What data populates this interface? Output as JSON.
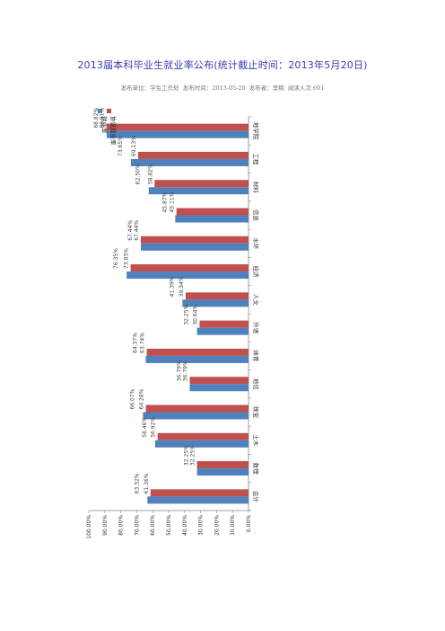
{
  "page": {
    "title": "2013届本科毕业生就业率公布(统计截止时间：2013年5月20日)",
    "meta": {
      "publisher": "发布单位：学生工作处",
      "publish_time": "发布时间：2013-05-20",
      "author": "发布者：李绚",
      "reads": "阅读人次 691"
    }
  },
  "chart_data": {
    "type": "bar",
    "orientation": "rotated-90",
    "categories": [
      "地学院",
      "工程",
      "材料",
      "信息",
      "水环",
      "经济",
      "人文",
      "外语",
      "体育",
      "地信",
      "珠宝",
      "土木",
      "数理",
      "会计"
    ],
    "series": [
      {
        "name": "就业率",
        "color": "#4f81bd",
        "values": [
          88.82,
          73.65,
          62.5,
          45.87,
          67.44,
          76.35,
          41.39,
          32.25,
          64.37,
          36.79,
          66.07,
          58.46,
          32.25,
          63.32
        ],
        "labels": [
          "88.82%",
          "73.65%",
          "62.50%",
          "45.87%",
          "67.44%",
          "76.35%",
          "41.39%",
          "32.25%",
          "64.37%",
          "36.79%",
          "66.07%",
          "58.46%",
          "32.25%",
          "63.32%"
        ]
      },
      {
        "name": "协议就业率",
        "color": "#c0504d",
        "values": [
          88.91,
          69.13,
          58.82,
          45.11,
          67.44,
          73.83,
          39.34,
          30.64,
          63.74,
          36.79,
          64.28,
          56.92,
          32.25,
          61.36
        ],
        "labels": [
          "88.91%",
          "69.13%",
          "58.82%",
          "45.11%",
          "67.44%",
          "73.83%",
          "39.34%",
          "30.64%",
          "63.74%",
          "36.79%",
          "64.28%",
          "56.92%",
          "32.25%",
          "61.36%"
        ]
      }
    ],
    "ylim": [
      0,
      100
    ],
    "yticks": [
      "0.00%",
      "10.00%",
      "20.00%",
      "30.00%",
      "40.00%",
      "50.00%",
      "60.00%",
      "70.00%",
      "80.00%",
      "90.00%",
      "100.00%"
    ],
    "legend": "top-left"
  }
}
